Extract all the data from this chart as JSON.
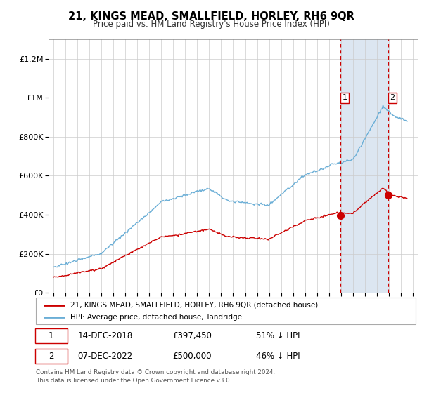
{
  "title": "21, KINGS MEAD, SMALLFIELD, HORLEY, RH6 9QR",
  "subtitle": "Price paid vs. HM Land Registry's House Price Index (HPI)",
  "legend_label_red": "21, KINGS MEAD, SMALLFIELD, HORLEY, RH6 9QR (detached house)",
  "legend_label_blue": "HPI: Average price, detached house, Tandridge",
  "transaction1_date": "14-DEC-2018",
  "transaction1_price": "£397,450",
  "transaction1_hpi": "51% ↓ HPI",
  "transaction1_year": 2018.95,
  "transaction1_value": 397450,
  "transaction2_date": "07-DEC-2022",
  "transaction2_price": "£500,000",
  "transaction2_hpi": "46% ↓ HPI",
  "transaction2_year": 2022.92,
  "transaction2_value": 500000,
  "footer": "Contains HM Land Registry data © Crown copyright and database right 2024.\nThis data is licensed under the Open Government Licence v3.0.",
  "red_color": "#cc0000",
  "blue_color": "#6aaed6",
  "shade_color": "#dce6f1",
  "background_color": "#ffffff",
  "ylim": [
    0,
    1300000
  ],
  "xlim_start": 1994.6,
  "xlim_end": 2025.4
}
